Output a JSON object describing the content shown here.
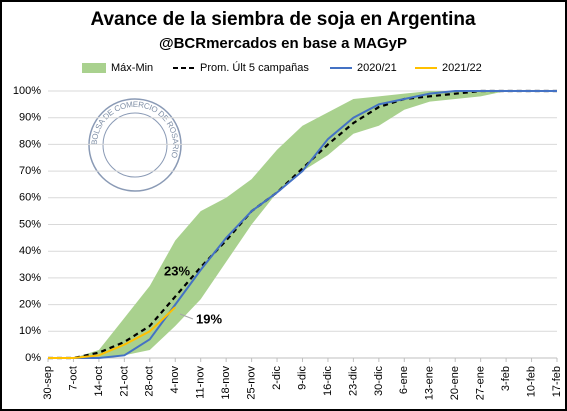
{
  "chart_data": {
    "type": "line",
    "title": "Avance de la siembra de soja en Argentina",
    "subtitle": "@BCRmercados en base a MAGyP",
    "logo_text": "BOLSA DE COMERCIO DE ROSARIO",
    "categories": [
      "30-sep",
      "7-oct",
      "14-oct",
      "21-oct",
      "28-oct",
      "4-nov",
      "11-nov",
      "18-nov",
      "25-nov",
      "2-dic",
      "9-dic",
      "16-dic",
      "23-dic",
      "30-dic",
      "6-ene",
      "13-ene",
      "20-ene",
      "27-ene",
      "3-feb",
      "10-feb",
      "17-feb"
    ],
    "band": {
      "name": "Máx-Min",
      "color": "#a9d18e",
      "upper": [
        0,
        0,
        3,
        15,
        27,
        44,
        55,
        60,
        67,
        78,
        87,
        92,
        97,
        98,
        99,
        100,
        100,
        100,
        100,
        100,
        100
      ],
      "lower": [
        0,
        0,
        0,
        1,
        3,
        12,
        22,
        36,
        50,
        62,
        70,
        76,
        84,
        87,
        93,
        96,
        97,
        98,
        100,
        100,
        100
      ]
    },
    "series": [
      {
        "name": "Prom. Últ 5 campañas",
        "color": "#000000",
        "dashed": true,
        "values": [
          0,
          0,
          2,
          6,
          12,
          23,
          34,
          44,
          55,
          62,
          71,
          80,
          88,
          94,
          97,
          98,
          99,
          100,
          100,
          100,
          100
        ]
      },
      {
        "name": "2020/21",
        "color": "#4472c4",
        "values": [
          0,
          0,
          0,
          1,
          7,
          20,
          33,
          45,
          55,
          62,
          70,
          82,
          90,
          95,
          97,
          99,
          100,
          100,
          100,
          100,
          100
        ]
      },
      {
        "name": "2021/22",
        "color": "#ffc000",
        "values": [
          0,
          0,
          1,
          5,
          10,
          19,
          null,
          null,
          null,
          null,
          null,
          null,
          null,
          null,
          null,
          null,
          null,
          null,
          null,
          null,
          null
        ]
      }
    ],
    "annotations": [
      "23%",
      "19%"
    ],
    "ylim": [
      0,
      100
    ],
    "yticks": [
      {
        "value": 0,
        "label": "0%"
      },
      {
        "value": 10,
        "label": "10%"
      },
      {
        "value": 20,
        "label": "20%"
      },
      {
        "value": 30,
        "label": "30%"
      },
      {
        "value": 40,
        "label": "40%"
      },
      {
        "value": 50,
        "label": "50%"
      },
      {
        "value": 60,
        "label": "60%"
      },
      {
        "value": 70,
        "label": "70%"
      },
      {
        "value": 80,
        "label": "80%"
      },
      {
        "value": 90,
        "label": "90%"
      },
      {
        "value": 100,
        "label": "100%"
      }
    ],
    "grid": true
  }
}
